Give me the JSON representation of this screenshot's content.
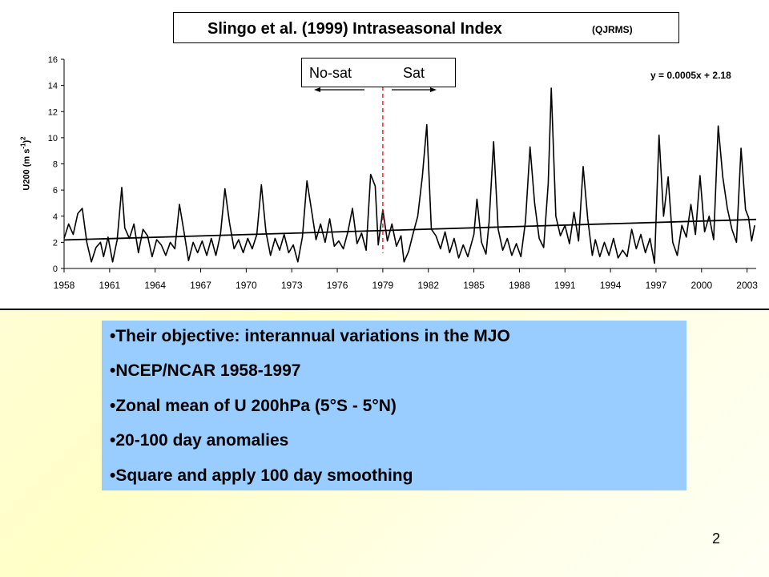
{
  "title": "Slingo et al. (1999) Intraseasonal Index",
  "title_source": "(QJRMS)",
  "era_labels": {
    "left": "No-sat",
    "right": "Sat"
  },
  "trend_label": "y = 0.0005x + 2.18",
  "colors": {
    "series": "#000000",
    "divider": "#ff0000",
    "bullet_box": "#99ccff"
  },
  "bullets": [
    "•Their objective: interannual variations in the MJO",
    "•NCEP/NCAR 1958-1997",
    "•Zonal mean of U 200hPa (5°S - 5°N)",
    "•20-100 day anomalies",
    "•Square and apply 100 day smoothing"
  ],
  "page_number": "2",
  "chart_data": {
    "type": "line",
    "title": "Slingo et al. (1999) Intraseasonal Index",
    "ylabel": "U200 (m s-1)2",
    "ylabel_parts": {
      "main": "U200 (m s",
      "sup1": "-1",
      "mid": ")",
      "sup2": "2"
    },
    "xlabel": "",
    "x_ticks": [
      "1958",
      "1961",
      "1964",
      "1967",
      "1970",
      "1973",
      "1976",
      "1979",
      "1982",
      "1985",
      "1988",
      "1991",
      "1994",
      "1997",
      "2000",
      "2003"
    ],
    "y_ticks": [
      0,
      2,
      4,
      6,
      8,
      10,
      12,
      14,
      16
    ],
    "xlim": [
      1958,
      2003.6
    ],
    "ylim": [
      0,
      16
    ],
    "grid": false,
    "divider_year": 1979.0,
    "trend": {
      "slope": 0.0005,
      "intercept": 2.18,
      "start": 2.18,
      "end": 3.75
    },
    "series": [
      {
        "values": [
          [
            1958.0,
            2.3
          ],
          [
            1958.3,
            3.4
          ],
          [
            1958.6,
            2.6
          ],
          [
            1958.9,
            4.2
          ],
          [
            1959.2,
            4.6
          ],
          [
            1959.5,
            2.0
          ],
          [
            1959.8,
            0.5
          ],
          [
            1960.1,
            1.6
          ],
          [
            1960.4,
            2.0
          ],
          [
            1960.6,
            0.9
          ],
          [
            1960.9,
            2.4
          ],
          [
            1961.2,
            0.5
          ],
          [
            1961.5,
            2.2
          ],
          [
            1961.8,
            6.2
          ],
          [
            1962.0,
            3.1
          ],
          [
            1962.3,
            2.3
          ],
          [
            1962.6,
            3.4
          ],
          [
            1962.9,
            1.2
          ],
          [
            1963.2,
            3.0
          ],
          [
            1963.5,
            2.5
          ],
          [
            1963.8,
            0.9
          ],
          [
            1964.1,
            2.2
          ],
          [
            1964.4,
            1.8
          ],
          [
            1964.7,
            1.0
          ],
          [
            1965.0,
            2.0
          ],
          [
            1965.3,
            1.5
          ],
          [
            1965.6,
            4.9
          ],
          [
            1965.9,
            2.8
          ],
          [
            1966.2,
            0.6
          ],
          [
            1966.5,
            2.0
          ],
          [
            1966.8,
            1.2
          ],
          [
            1967.1,
            2.1
          ],
          [
            1967.4,
            1.0
          ],
          [
            1967.7,
            2.3
          ],
          [
            1968.0,
            1.0
          ],
          [
            1968.3,
            2.6
          ],
          [
            1968.6,
            6.1
          ],
          [
            1968.9,
            3.5
          ],
          [
            1969.2,
            1.5
          ],
          [
            1969.5,
            2.2
          ],
          [
            1969.8,
            1.2
          ],
          [
            1970.1,
            2.3
          ],
          [
            1970.4,
            1.5
          ],
          [
            1970.7,
            2.6
          ],
          [
            1971.0,
            6.4
          ],
          [
            1971.3,
            2.8
          ],
          [
            1971.6,
            1.0
          ],
          [
            1971.9,
            2.3
          ],
          [
            1972.2,
            1.4
          ],
          [
            1972.5,
            2.6
          ],
          [
            1972.8,
            1.2
          ],
          [
            1973.1,
            1.8
          ],
          [
            1973.4,
            0.5
          ],
          [
            1973.7,
            2.4
          ],
          [
            1974.0,
            6.7
          ],
          [
            1974.3,
            4.5
          ],
          [
            1974.6,
            2.2
          ],
          [
            1974.9,
            3.4
          ],
          [
            1975.2,
            2.0
          ],
          [
            1975.5,
            3.8
          ],
          [
            1975.8,
            1.7
          ],
          [
            1976.1,
            2.1
          ],
          [
            1976.4,
            1.5
          ],
          [
            1976.7,
            2.8
          ],
          [
            1977.0,
            4.6
          ],
          [
            1977.3,
            1.9
          ],
          [
            1977.6,
            2.7
          ],
          [
            1977.9,
            1.4
          ],
          [
            1978.2,
            7.2
          ],
          [
            1978.5,
            6.3
          ],
          [
            1978.7,
            1.8
          ],
          [
            1979.0,
            4.5
          ],
          [
            1979.3,
            2.1
          ],
          [
            1979.6,
            3.4
          ],
          [
            1979.9,
            1.7
          ],
          [
            1980.2,
            2.5
          ],
          [
            1980.4,
            0.5
          ],
          [
            1980.7,
            1.3
          ],
          [
            1981.0,
            2.7
          ],
          [
            1981.3,
            4.0
          ],
          [
            1981.6,
            7.0
          ],
          [
            1981.9,
            11.0
          ],
          [
            1982.2,
            3.0
          ],
          [
            1982.5,
            2.5
          ],
          [
            1982.8,
            1.5
          ],
          [
            1983.1,
            2.8
          ],
          [
            1983.4,
            1.2
          ],
          [
            1983.7,
            2.3
          ],
          [
            1984.0,
            0.8
          ],
          [
            1984.3,
            1.8
          ],
          [
            1984.6,
            0.9
          ],
          [
            1985.0,
            2.6
          ],
          [
            1985.2,
            5.3
          ],
          [
            1985.5,
            2.0
          ],
          [
            1985.8,
            1.1
          ],
          [
            1986.0,
            3.5
          ],
          [
            1986.3,
            9.7
          ],
          [
            1986.6,
            3.0
          ],
          [
            1986.9,
            1.4
          ],
          [
            1987.2,
            2.3
          ],
          [
            1987.5,
            1.0
          ],
          [
            1987.8,
            1.9
          ],
          [
            1988.1,
            0.9
          ],
          [
            1988.4,
            3.6
          ],
          [
            1988.7,
            9.3
          ],
          [
            1989.0,
            5.0
          ],
          [
            1989.3,
            2.3
          ],
          [
            1989.6,
            1.6
          ],
          [
            1989.9,
            6.5
          ],
          [
            1990.1,
            13.8
          ],
          [
            1990.4,
            4.0
          ],
          [
            1990.7,
            2.5
          ],
          [
            1991.0,
            3.3
          ],
          [
            1991.3,
            1.9
          ],
          [
            1991.6,
            4.3
          ],
          [
            1991.9,
            2.1
          ],
          [
            1992.2,
            7.8
          ],
          [
            1992.5,
            3.8
          ],
          [
            1992.8,
            1.0
          ],
          [
            1993.0,
            2.2
          ],
          [
            1993.3,
            0.9
          ],
          [
            1993.6,
            2.0
          ],
          [
            1993.9,
            1.0
          ],
          [
            1994.2,
            2.3
          ],
          [
            1994.5,
            0.8
          ],
          [
            1994.8,
            1.4
          ],
          [
            1995.1,
            0.9
          ],
          [
            1995.4,
            3.0
          ],
          [
            1995.7,
            1.5
          ],
          [
            1996.0,
            2.6
          ],
          [
            1996.3,
            1.2
          ],
          [
            1996.6,
            2.3
          ],
          [
            1996.9,
            0.4
          ],
          [
            1997.2,
            10.2
          ],
          [
            1997.5,
            4.0
          ],
          [
            1997.8,
            7.0
          ],
          [
            1998.1,
            2.0
          ],
          [
            1998.4,
            1.0
          ],
          [
            1998.7,
            3.3
          ],
          [
            1999.0,
            2.4
          ],
          [
            1999.3,
            4.9
          ],
          [
            1999.6,
            2.6
          ],
          [
            1999.9,
            7.1
          ],
          [
            2000.2,
            2.8
          ],
          [
            2000.5,
            4.0
          ],
          [
            2000.8,
            2.2
          ],
          [
            2001.1,
            10.9
          ],
          [
            2001.4,
            7.0
          ],
          [
            2001.7,
            4.6
          ],
          [
            2002.0,
            3.0
          ],
          [
            2002.3,
            2.0
          ],
          [
            2002.6,
            9.2
          ],
          [
            2002.9,
            4.5
          ],
          [
            2003.1,
            3.9
          ],
          [
            2003.3,
            2.1
          ],
          [
            2003.5,
            3.3
          ]
        ]
      }
    ]
  }
}
